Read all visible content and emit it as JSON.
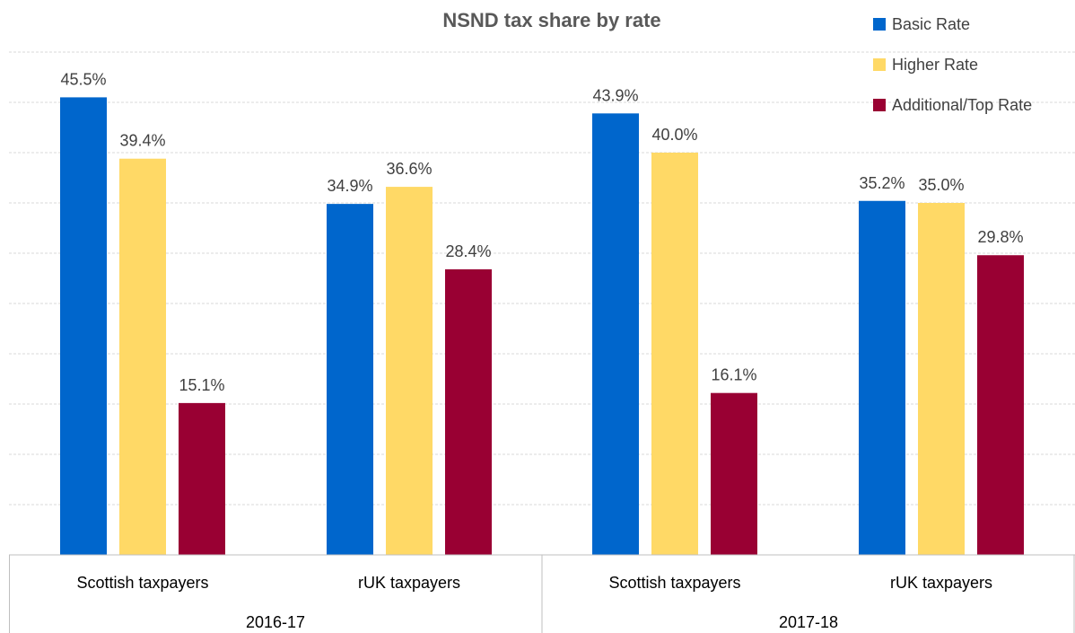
{
  "chart_data": {
    "type": "bar",
    "title": "NSND tax share by rate",
    "groups": [
      {
        "label": "2016-17",
        "categories": [
          "Scottish taxpayers",
          "rUK taxpayers"
        ]
      },
      {
        "label": "2017-18",
        "categories": [
          "Scottish taxpayers",
          "rUK taxpayers"
        ]
      }
    ],
    "categories": [
      "Scottish taxpayers",
      "rUK taxpayers",
      "Scottish taxpayers",
      "rUK taxpayers"
    ],
    "series": [
      {
        "name": "Basic Rate",
        "color": "#0066CC",
        "values": [
          45.5,
          34.9,
          43.9,
          35.2
        ]
      },
      {
        "name": "Higher Rate",
        "color": "#FFD966",
        "values": [
          39.4,
          36.6,
          40.0,
          35.0
        ]
      },
      {
        "name": "Additional/Top Rate",
        "color": "#990033",
        "values": [
          15.1,
          28.4,
          16.1,
          29.8
        ]
      }
    ],
    "value_format": "percent_1dp",
    "ylim": [
      0,
      50
    ],
    "grid": true,
    "legend_position": "top-right",
    "xlabel": "",
    "ylabel": ""
  }
}
